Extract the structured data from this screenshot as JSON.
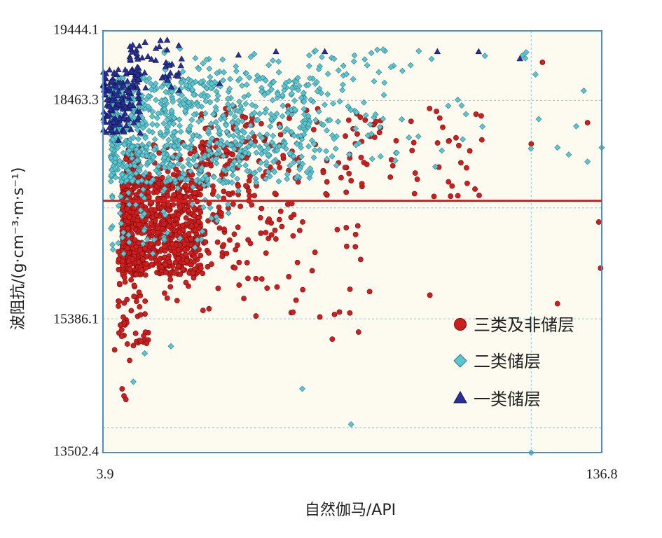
{
  "colors": {
    "plot_background": "#fdfbf0",
    "frame": "#4a8fc4",
    "grid": "#8cc7de",
    "cutoff_line": "#e01818",
    "class3": "#cc1f1f",
    "class2": "#5cc6cf",
    "class1": "#28309a"
  },
  "chart_data": {
    "type": "scatter",
    "xlabel": "自然伽马/API",
    "ylabel": "波阻抗/(g·cm⁻³·m·s⁻¹)",
    "xlim": [
      3.9,
      136.8
    ],
    "ylim": [
      13502.4,
      19444.1
    ],
    "x_ticks": [
      "3.9",
      "136.8"
    ],
    "y_ticks": [
      "19444.1",
      "18463.3",
      "15386.1",
      "13502.4"
    ],
    "grid_y": [
      18463.3,
      16950,
      15386.1,
      13850
    ],
    "grid_x": [
      118
    ],
    "cutoff_line_y": 17050,
    "legend": [
      {
        "name": "三类及非储层",
        "marker": "circle",
        "color": "#cc1f1f"
      },
      {
        "name": "二类储层",
        "marker": "diamond",
        "color": "#5cc6cf"
      },
      {
        "name": "一类储层",
        "marker": "triangle",
        "color": "#28309a"
      }
    ],
    "series": [
      {
        "name": "三类及非储层",
        "marker": "circle",
        "clusters": [
          {
            "x": [
              9,
              30
            ],
            "y": [
              16000,
              17400
            ],
            "n": 750
          },
          {
            "x": [
              10,
              55
            ],
            "y": [
              16300,
              17900
            ],
            "n": 260
          },
          {
            "x": [
              8,
              16
            ],
            "y": [
              15000,
              16400
            ],
            "n": 70
          },
          {
            "x": [
              20,
              75
            ],
            "y": [
              15400,
              16800
            ],
            "n": 70
          },
          {
            "x": [
              30,
              105
            ],
            "y": [
              17100,
              18400
            ],
            "n": 170
          }
        ],
        "points": [
          {
            "x": 9,
            "y": 14400
          },
          {
            "x": 9.5,
            "y": 14300
          },
          {
            "x": 10,
            "y": 14250
          },
          {
            "x": 7,
            "y": 14950
          },
          {
            "x": 11,
            "y": 14800
          },
          {
            "x": 91,
            "y": 15720
          },
          {
            "x": 125,
            "y": 15600
          },
          {
            "x": 118,
            "y": 17850
          },
          {
            "x": 136,
            "y": 16750
          },
          {
            "x": 136.5,
            "y": 16100
          },
          {
            "x": 121,
            "y": 19000
          },
          {
            "x": 133,
            "y": 18150
          },
          {
            "x": 65,
            "y": 15100
          },
          {
            "x": 72,
            "y": 15200
          }
        ]
      },
      {
        "name": "二类储层",
        "marker": "diamond",
        "clusters": [
          {
            "x": [
              6,
              60
            ],
            "y": [
              17300,
              18800
            ],
            "n": 720
          },
          {
            "x": [
              20,
              80
            ],
            "y": [
              17600,
              19200
            ],
            "n": 170
          },
          {
            "x": [
              60,
              120
            ],
            "y": [
              17500,
              19200
            ],
            "n": 70
          },
          {
            "x": [
              6,
              40
            ],
            "y": [
              16300,
              17300
            ],
            "n": 60
          }
        ],
        "points": [
          {
            "x": 120,
            "y": 18200
          },
          {
            "x": 125,
            "y": 17800
          },
          {
            "x": 128,
            "y": 17700
          },
          {
            "x": 130,
            "y": 18100
          },
          {
            "x": 133,
            "y": 17600
          },
          {
            "x": 136.8,
            "y": 17800
          },
          {
            "x": 70,
            "y": 13900
          },
          {
            "x": 57,
            "y": 14400
          },
          {
            "x": 12,
            "y": 14500
          },
          {
            "x": 22,
            "y": 15000
          },
          {
            "x": 15,
            "y": 14900
          },
          {
            "x": 132,
            "y": 18600
          },
          {
            "x": 118,
            "y": 13500
          }
        ]
      },
      {
        "name": "一类储层",
        "marker": "triangle",
        "clusters": [
          {
            "x": [
              4,
              14
            ],
            "y": [
              18000,
              18900
            ],
            "n": 150
          },
          {
            "x": [
              11,
              25
            ],
            "y": [
              18600,
              19320
            ],
            "n": 55
          }
        ],
        "points": [
          {
            "x": 8,
            "y": 17900
          },
          {
            "x": 40,
            "y": 19100
          },
          {
            "x": 50,
            "y": 19150
          },
          {
            "x": 63,
            "y": 19150
          },
          {
            "x": 93,
            "y": 19150
          },
          {
            "x": 104,
            "y": 19150
          },
          {
            "x": 115,
            "y": 19050
          },
          {
            "x": 35,
            "y": 18700
          }
        ]
      }
    ]
  }
}
